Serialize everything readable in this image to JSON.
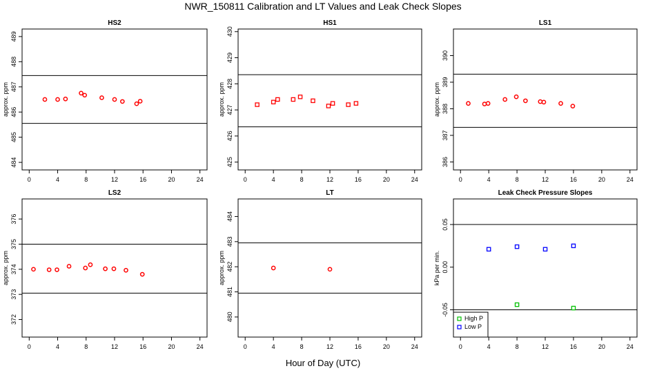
{
  "title": "NWR_150811  Calibration and LT Values and Leak Check Slopes",
  "xlabel": "Hour of Day (UTC)",
  "colors": {
    "high": "#ff0000",
    "low": "#0000ff",
    "leak_high": "#00c000",
    "line": "#000000"
  },
  "chart_data": [
    {
      "type": "scatter",
      "title": "HS2",
      "ylabel": "approx. ppm",
      "xlim": [
        -1,
        25
      ],
      "ylim": [
        483.7,
        489.3
      ],
      "xticks": [
        0,
        4,
        8,
        12,
        16,
        20,
        24
      ],
      "xtick_labels": [
        "0",
        "4",
        "8",
        "12",
        "16",
        "20",
        "24"
      ],
      "yticks": [
        484,
        485,
        486,
        487,
        488,
        489
      ],
      "ytick_labels": [
        "484",
        "485",
        "486",
        "487",
        "488",
        "489"
      ],
      "hlines": [
        487.45,
        485.55
      ],
      "series": [
        {
          "marker": "circle",
          "color": "#ff0000",
          "x": [
            2.2,
            4.0,
            5.1,
            7.3,
            7.8,
            10.2,
            12.0,
            13.1,
            15.1,
            15.6
          ],
          "y": [
            486.5,
            486.5,
            486.52,
            486.75,
            486.67,
            486.57,
            486.5,
            486.42,
            486.33,
            486.43
          ]
        }
      ]
    },
    {
      "type": "scatter",
      "title": "HS1",
      "ylabel": "approx. ppm",
      "xlim": [
        -1,
        25
      ],
      "ylim": [
        424.7,
        430.1
      ],
      "xticks": [
        0,
        4,
        8,
        12,
        16,
        20,
        24
      ],
      "xtick_labels": [
        "0",
        "4",
        "8",
        "12",
        "16",
        "20",
        "24"
      ],
      "yticks": [
        425,
        426,
        427,
        428,
        429,
        430
      ],
      "ytick_labels": [
        "425",
        "426",
        "427",
        "428",
        "429",
        "430"
      ],
      "hlines": [
        428.35,
        426.35
      ],
      "series": [
        {
          "marker": "square",
          "color": "#ff0000",
          "x": [
            1.7,
            4.0,
            4.6,
            6.8,
            7.8,
            9.6,
            11.8,
            12.4,
            14.6,
            15.7
          ],
          "y": [
            427.2,
            427.3,
            427.4,
            427.4,
            427.5,
            427.35,
            427.15,
            427.25,
            427.2,
            427.25
          ]
        }
      ]
    },
    {
      "type": "scatter",
      "title": "LS1",
      "ylabel": "approx. ppm",
      "xlim": [
        -1,
        25
      ],
      "ylim": [
        385.7,
        391.0
      ],
      "xticks": [
        0,
        4,
        8,
        12,
        16,
        20,
        24
      ],
      "xtick_labels": [
        "0",
        "4",
        "8",
        "12",
        "16",
        "20",
        "24"
      ],
      "yticks": [
        386,
        387,
        388,
        389,
        390
      ],
      "ytick_labels": [
        "386",
        "387",
        "388",
        "389",
        "390"
      ],
      "hlines": [
        389.3,
        387.3
      ],
      "series": [
        {
          "marker": "circle",
          "color": "#ff0000",
          "x": [
            1.1,
            3.4,
            3.9,
            6.3,
            7.9,
            9.2,
            11.3,
            11.8,
            14.2,
            15.9
          ],
          "y": [
            388.2,
            388.18,
            388.2,
            388.35,
            388.45,
            388.3,
            388.27,
            388.25,
            388.2,
            388.1
          ]
        }
      ]
    },
    {
      "type": "scatter",
      "title": "LS2",
      "ylabel": "approx. ppm",
      "xlim": [
        -1,
        25
      ],
      "ylim": [
        371.3,
        376.8
      ],
      "xticks": [
        0,
        4,
        8,
        12,
        16,
        20,
        24
      ],
      "xtick_labels": [
        "0",
        "4",
        "8",
        "12",
        "16",
        "20",
        "24"
      ],
      "yticks": [
        372,
        373,
        374,
        375,
        376
      ],
      "ytick_labels": [
        "372",
        "373",
        "374",
        "375",
        "376"
      ],
      "hlines": [
        375.0,
        373.05
      ],
      "series": [
        {
          "marker": "circle",
          "color": "#ff0000",
          "x": [
            0.6,
            2.8,
            3.9,
            5.6,
            7.9,
            8.6,
            10.7,
            11.9,
            13.6,
            15.9
          ],
          "y": [
            374.0,
            373.98,
            373.98,
            374.12,
            374.05,
            374.18,
            374.02,
            374.02,
            373.96,
            373.8
          ]
        }
      ]
    },
    {
      "type": "scatter",
      "title": "LT",
      "ylabel": "approx. ppm",
      "xlim": [
        -1,
        25
      ],
      "ylim": [
        479.2,
        484.7
      ],
      "xticks": [
        0,
        4,
        8,
        12,
        16,
        20,
        24
      ],
      "xtick_labels": [
        "0",
        "4",
        "8",
        "12",
        "16",
        "20",
        "24"
      ],
      "yticks": [
        480,
        481,
        482,
        483,
        484
      ],
      "ytick_labels": [
        "480",
        "481",
        "482",
        "483",
        "484"
      ],
      "hlines": [
        482.95,
        480.95
      ],
      "series": [
        {
          "marker": "circle",
          "color": "#ff0000",
          "x": [
            4.0,
            12.0
          ],
          "y": [
            481.95,
            481.9
          ]
        }
      ]
    },
    {
      "type": "scatter",
      "title": "Leak Check Pressure Slopes",
      "ylabel": "kPa per min.",
      "xlim": [
        -1,
        25
      ],
      "ylim": [
        -0.082,
        0.08
      ],
      "xticks": [
        0,
        4,
        8,
        12,
        16,
        20,
        24
      ],
      "xtick_labels": [
        "0",
        "4",
        "8",
        "12",
        "16",
        "20",
        "24"
      ],
      "yticks": [
        -0.05,
        0.0,
        0.05
      ],
      "ytick_labels": [
        "-0.05",
        "0.00",
        "0.05"
      ],
      "hlines": [
        0.05,
        -0.05
      ],
      "legend": "bottom-left",
      "series": [
        {
          "name": "High P",
          "marker": "square",
          "color": "#00c000",
          "x": [
            8.0,
            16.0
          ],
          "y": [
            -0.044,
            -0.048
          ]
        },
        {
          "name": "Low P",
          "marker": "square",
          "color": "#0000ff",
          "x": [
            4.0,
            8.0,
            12.0,
            16.0
          ],
          "y": [
            0.021,
            0.024,
            0.021,
            0.025
          ]
        }
      ]
    }
  ]
}
